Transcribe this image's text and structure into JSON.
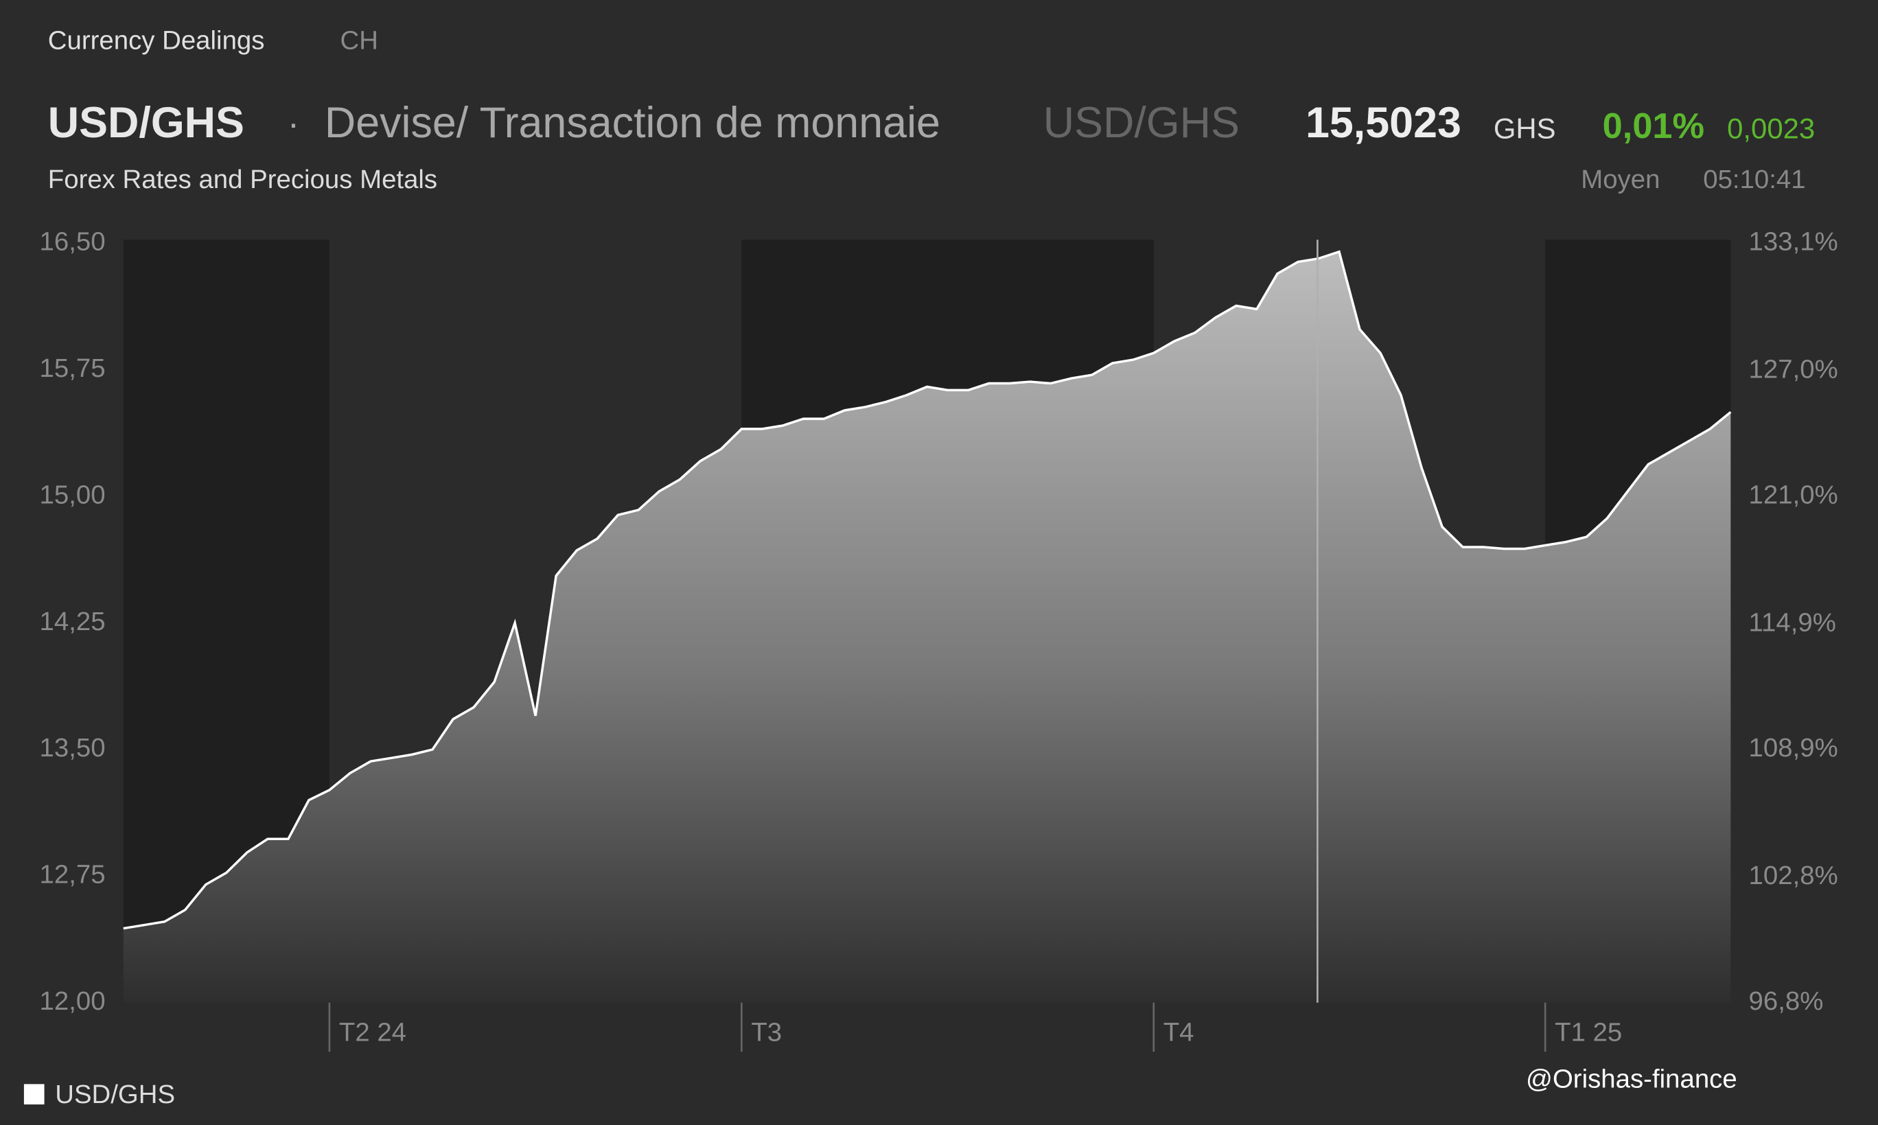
{
  "header": {
    "section": "Currency Dealings",
    "market": "CH",
    "symbol": "USD/GHS",
    "separator": "·",
    "description": "Devise/ Transaction de monnaie",
    "symbol_alt": "USD/GHS",
    "price": "15,5023",
    "currency": "GHS",
    "change_pct": "0,01%",
    "change_abs": "0,0023",
    "subtitle": "Forex Rates and Precious Metals",
    "price_type": "Moyen",
    "time": "05:10:41"
  },
  "chart_data": {
    "type": "area",
    "categories": [
      null,
      null,
      null,
      null,
      null,
      null,
      null,
      null,
      null,
      null,
      "T2 24",
      null,
      null,
      null,
      null,
      null,
      null,
      null,
      null,
      null,
      null,
      null,
      null,
      null,
      null,
      null,
      null,
      null,
      null,
      null,
      "T3",
      null,
      null,
      null,
      null,
      null,
      null,
      null,
      null,
      null,
      null,
      null,
      null,
      null,
      null,
      null,
      null,
      null,
      null,
      null,
      "T4",
      null,
      null,
      null,
      null,
      null,
      null,
      null,
      null,
      null,
      null,
      null,
      null,
      null,
      null,
      null,
      null,
      null,
      null,
      "T1 25",
      null,
      null,
      null,
      null,
      null,
      null,
      null,
      null,
      null
    ],
    "series": [
      {
        "name": "USD/GHS",
        "color": "#ffffff",
        "values": [
          12.44,
          12.46,
          12.48,
          12.55,
          12.7,
          12.77,
          12.89,
          12.97,
          12.97,
          13.2,
          13.26,
          13.36,
          13.43,
          13.45,
          13.47,
          13.5,
          13.68,
          13.75,
          13.9,
          14.25,
          13.7,
          14.53,
          14.68,
          14.75,
          14.89,
          14.92,
          15.03,
          15.1,
          15.21,
          15.28,
          15.4,
          15.4,
          15.42,
          15.46,
          15.46,
          15.51,
          15.53,
          15.56,
          15.6,
          15.65,
          15.63,
          15.63,
          15.67,
          15.67,
          15.68,
          15.67,
          15.7,
          15.72,
          15.79,
          15.81,
          15.85,
          15.92,
          15.97,
          16.06,
          16.13,
          16.11,
          16.32,
          16.39,
          16.41,
          16.45,
          15.99,
          15.85,
          15.6,
          15.17,
          14.82,
          14.7,
          14.7,
          14.69,
          14.69,
          14.71,
          14.73,
          14.76,
          14.87,
          15.03,
          15.19,
          15.26,
          15.33,
          15.4,
          15.5
        ]
      }
    ],
    "ylim": [
      12,
      16.5
    ],
    "yticks": [
      {
        "value": 16.5,
        "label": "16,50"
      },
      {
        "value": 15.75,
        "label": "15,75"
      },
      {
        "value": 15,
        "label": "15,00"
      },
      {
        "value": 14.25,
        "label": "14,25"
      },
      {
        "value": 13.5,
        "label": "13,50"
      },
      {
        "value": 12.75,
        "label": "12,75"
      },
      {
        "value": 12,
        "label": "12,00"
      }
    ],
    "y2lim": [
      96.8,
      133.1
    ],
    "y2ticks": [
      {
        "value": 133.1,
        "label": "133,1%"
      },
      {
        "value": 127.0,
        "label": "127,0%"
      },
      {
        "value": 121.0,
        "label": "121,0%"
      },
      {
        "value": 114.9,
        "label": "114,9%"
      },
      {
        "value": 108.9,
        "label": "108,9%"
      },
      {
        "value": 102.8,
        "label": "102,8%"
      },
      {
        "value": 96.8,
        "label": "96,8%"
      }
    ],
    "grid": false,
    "legend": "bottom-left"
  },
  "watermark": "@Orishas-finance"
}
